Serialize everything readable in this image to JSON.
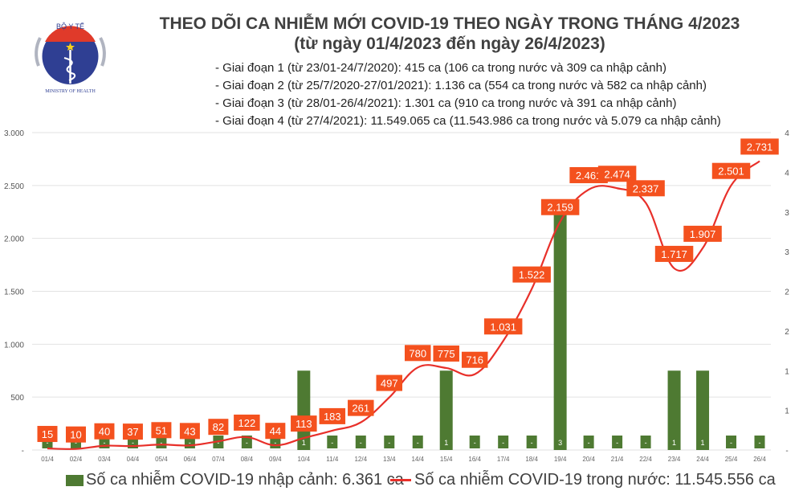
{
  "logo": {
    "text_top": "BỘ Y TẾ",
    "text_bottom": "MINISTRY OF HEALTH"
  },
  "title": "THEO DÕI CA NHIỄM MỚI COVID-19 THEO NGÀY TRONG THÁNG 4/2023",
  "subtitle": "(từ ngày 01/4/2023 đến ngày 26/4/2023)",
  "phases": [
    "- Giai đoạn 1 (từ 23/01-24/7/2020): 415 ca (106 ca trong nước và 309 ca nhập cảnh)",
    "- Giai đoạn 2 (từ 25/7/2020-27/01/2021): 1.136 ca (554 ca trong nước và 582 ca nhập cảnh)",
    "- Giai đoạn 3 (từ 28/01-26/4/2021): 1.301 ca (910 ca trong nước và 391 ca nhập cảnh)",
    "- Giai đoạn 4 (từ 27/4/2021): 11.549.065 ca (11.543.986 ca trong nước và 5.079 ca nhập cảnh)"
  ],
  "chart_data": {
    "type": "bar+line",
    "categories": [
      "01/4",
      "02/4",
      "03/4",
      "04/4",
      "05/4",
      "06/4",
      "07/4",
      "08/4",
      "09/4",
      "10/4",
      "11/4",
      "12/4",
      "13/4",
      "14/4",
      "15/4",
      "16/4",
      "17/4",
      "18/4",
      "19/4",
      "20/4",
      "21/4",
      "22/4",
      "23/4",
      "24/4",
      "25/4",
      "26/4"
    ],
    "series": [
      {
        "name": "Số ca nhiễm COVID-19 nhập cảnh: 6.361 ca",
        "type": "bar",
        "axis": "right",
        "color": "#4e7a32",
        "values": [
          0,
          0,
          0,
          0,
          0,
          0,
          0,
          0,
          0,
          1,
          0,
          0,
          0,
          0,
          1,
          0,
          0,
          0,
          3,
          0,
          0,
          0,
          1,
          1,
          0,
          0
        ],
        "labels": [
          "-",
          "-",
          "-",
          "-",
          "-",
          "-",
          "-",
          "-",
          "-",
          "1",
          "-",
          "-",
          "-",
          "-",
          "1",
          "-",
          "-",
          "-",
          "3",
          "-",
          "-",
          "-",
          "1",
          "1",
          "-",
          "-"
        ]
      },
      {
        "name": "Số ca nhiễm COVID-19 trong nước: 11.545.556 ca",
        "type": "line",
        "axis": "left",
        "color": "#e8302a",
        "values": [
          15,
          10,
          40,
          37,
          51,
          43,
          82,
          122,
          44,
          113,
          183,
          261,
          497,
          780,
          775,
          716,
          1031,
          1522,
          2159,
          2461,
          2474,
          2337,
          1717,
          1907,
          2501,
          2731
        ],
        "labels": [
          "15",
          "10",
          "40",
          "37",
          "51",
          "43",
          "82",
          "122",
          "44",
          "113",
          "183",
          "261",
          "497",
          "780",
          "775",
          "716",
          "1.031",
          "1.522",
          "2.159",
          "2.461",
          "2.474",
          "2.337",
          "1.717",
          "1.907",
          "2.501",
          "2.731"
        ]
      }
    ],
    "left_axis": {
      "ylim": [
        0,
        3000
      ],
      "ticks": [
        "-",
        "500",
        "1.000",
        "1.500",
        "2.000",
        "2.500",
        "3.000"
      ]
    },
    "right_axis": {
      "ylim": [
        0,
        4
      ],
      "ticks": [
        "-",
        "1",
        "1",
        "2",
        "2",
        "3",
        "3",
        "4",
        "4"
      ]
    },
    "grid": true,
    "legend_position": "bottom",
    "label_color": "#f4511e"
  }
}
